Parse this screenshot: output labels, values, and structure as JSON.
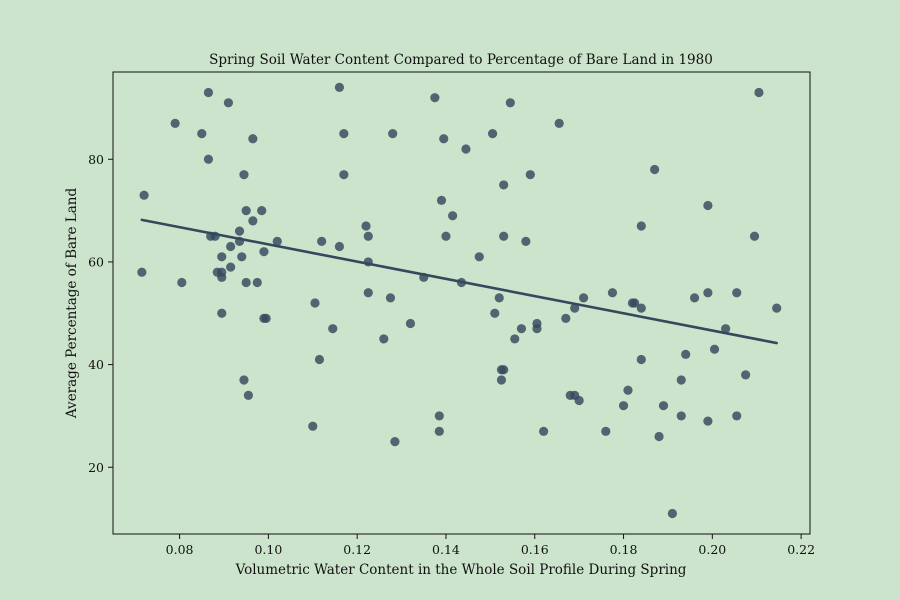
{
  "chart_data": {
    "type": "scatter",
    "title": "Spring Soil Water Content Compared to Percentage of Bare Land in 1980",
    "xlabel": "Volumetric Water Content in the Whole Soil Profile During Spring",
    "ylabel": "Average Percentage of Bare Land",
    "xlim": [
      0.065,
      0.222
    ],
    "ylim": [
      7,
      97
    ],
    "xticks": [
      "0.08",
      "0.10",
      "0.12",
      "0.14",
      "0.16",
      "0.18",
      "0.20",
      "0.22"
    ],
    "yticks": [
      "20",
      "40",
      "60",
      "80"
    ],
    "grid": false,
    "colors": {
      "background": "#cbe4cb",
      "points": "#34495e",
      "line": "#34495e"
    },
    "trendline": {
      "x": [
        0.0715,
        0.2145
      ],
      "y": [
        68.2,
        44.2
      ]
    },
    "points": [
      [
        0.0715,
        58
      ],
      [
        0.072,
        73
      ],
      [
        0.079,
        87
      ],
      [
        0.0805,
        56
      ],
      [
        0.085,
        85
      ],
      [
        0.0865,
        93
      ],
      [
        0.0865,
        80
      ],
      [
        0.087,
        65
      ],
      [
        0.088,
        65
      ],
      [
        0.0885,
        58
      ],
      [
        0.0895,
        58
      ],
      [
        0.0895,
        61
      ],
      [
        0.0895,
        57
      ],
      [
        0.0895,
        50
      ],
      [
        0.091,
        91
      ],
      [
        0.0915,
        63
      ],
      [
        0.0915,
        59
      ],
      [
        0.0935,
        64
      ],
      [
        0.0935,
        66
      ],
      [
        0.094,
        61
      ],
      [
        0.0945,
        77
      ],
      [
        0.095,
        70
      ],
      [
        0.095,
        56
      ],
      [
        0.0945,
        37
      ],
      [
        0.0955,
        34
      ],
      [
        0.0965,
        68
      ],
      [
        0.0965,
        84
      ],
      [
        0.0975,
        56
      ],
      [
        0.0985,
        70
      ],
      [
        0.099,
        62
      ],
      [
        0.099,
        49
      ],
      [
        0.0995,
        49
      ],
      [
        0.102,
        64
      ],
      [
        0.11,
        28
      ],
      [
        0.1105,
        52
      ],
      [
        0.1115,
        41
      ],
      [
        0.112,
        64
      ],
      [
        0.1145,
        47
      ],
      [
        0.116,
        94
      ],
      [
        0.116,
        63
      ],
      [
        0.117,
        85
      ],
      [
        0.117,
        77
      ],
      [
        0.122,
        67
      ],
      [
        0.1225,
        60
      ],
      [
        0.1225,
        65
      ],
      [
        0.1225,
        54
      ],
      [
        0.126,
        45
      ],
      [
        0.1275,
        53
      ],
      [
        0.128,
        85
      ],
      [
        0.1285,
        25
      ],
      [
        0.132,
        48
      ],
      [
        0.135,
        57
      ],
      [
        0.1375,
        92
      ],
      [
        0.1385,
        30
      ],
      [
        0.1385,
        27
      ],
      [
        0.139,
        72
      ],
      [
        0.1395,
        84
      ],
      [
        0.14,
        65
      ],
      [
        0.1415,
        69
      ],
      [
        0.1435,
        56
      ],
      [
        0.1445,
        82
      ],
      [
        0.1475,
        61
      ],
      [
        0.1505,
        85
      ],
      [
        0.151,
        50
      ],
      [
        0.152,
        53
      ],
      [
        0.1525,
        39
      ],
      [
        0.153,
        39
      ],
      [
        0.1525,
        37
      ],
      [
        0.153,
        65
      ],
      [
        0.153,
        75
      ],
      [
        0.1545,
        91
      ],
      [
        0.1555,
        45
      ],
      [
        0.157,
        47
      ],
      [
        0.158,
        64
      ],
      [
        0.159,
        77
      ],
      [
        0.1605,
        48
      ],
      [
        0.1605,
        47
      ],
      [
        0.162,
        27
      ],
      [
        0.1655,
        87
      ],
      [
        0.167,
        49
      ],
      [
        0.168,
        34
      ],
      [
        0.169,
        51
      ],
      [
        0.169,
        34
      ],
      [
        0.17,
        33
      ],
      [
        0.171,
        53
      ],
      [
        0.176,
        27
      ],
      [
        0.1775,
        54
      ],
      [
        0.18,
        32
      ],
      [
        0.181,
        35
      ],
      [
        0.182,
        52
      ],
      [
        0.1825,
        52
      ],
      [
        0.184,
        67
      ],
      [
        0.184,
        51
      ],
      [
        0.184,
        41
      ],
      [
        0.187,
        78
      ],
      [
        0.188,
        26
      ],
      [
        0.189,
        32
      ],
      [
        0.191,
        11
      ],
      [
        0.193,
        37
      ],
      [
        0.193,
        30
      ],
      [
        0.194,
        42
      ],
      [
        0.196,
        53
      ],
      [
        0.199,
        71
      ],
      [
        0.199,
        54
      ],
      [
        0.199,
        29
      ],
      [
        0.2005,
        43
      ],
      [
        0.203,
        47
      ],
      [
        0.2055,
        54
      ],
      [
        0.2055,
        30
      ],
      [
        0.2075,
        38
      ],
      [
        0.2095,
        65
      ],
      [
        0.2105,
        93
      ],
      [
        0.2145,
        51
      ]
    ]
  }
}
